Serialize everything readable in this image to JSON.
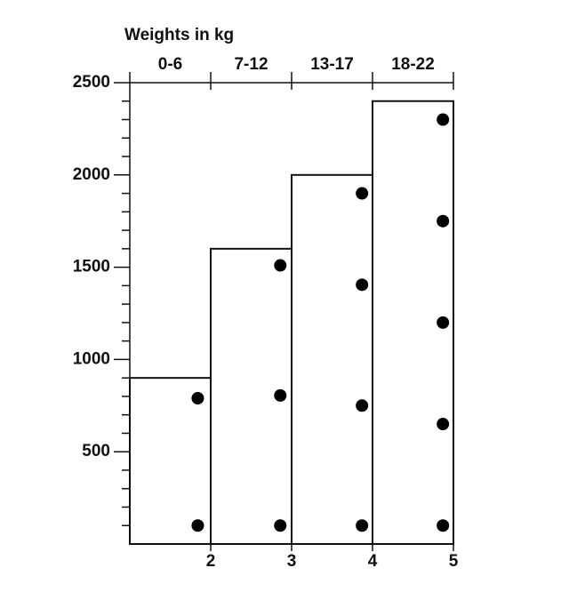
{
  "chart_data": {
    "type": "histogram",
    "title": "Weights in kg",
    "categories": [
      "0-6",
      "7-12",
      "13-17",
      "18-22"
    ],
    "bins": [
      1,
      2,
      3,
      4,
      5
    ],
    "values": [
      900,
      1600,
      2000,
      2400
    ],
    "points": {
      "x": [
        1.84,
        1.84,
        2.86,
        2.86,
        2.86,
        3.87,
        3.87,
        3.87,
        3.87,
        4.87,
        4.87,
        4.87,
        4.87,
        4.87
      ],
      "values": [
        790,
        100,
        1510,
        805,
        100,
        1900,
        1405,
        750,
        100,
        2300,
        1750,
        1200,
        650,
        100
      ],
      "color": "#000000"
    },
    "xlim": [
      1,
      5
    ],
    "xticks": [
      2,
      3,
      4,
      5
    ],
    "ylim": [
      0,
      2500
    ],
    "yticks": [
      500,
      1000,
      1500,
      2000,
      2500
    ],
    "yminor_ticks": [
      100,
      200,
      300,
      400,
      600,
      700,
      800,
      900,
      1100,
      1200,
      1300,
      1400,
      1600,
      1700,
      1800,
      1900,
      2100,
      2200,
      2300,
      2400
    ]
  }
}
